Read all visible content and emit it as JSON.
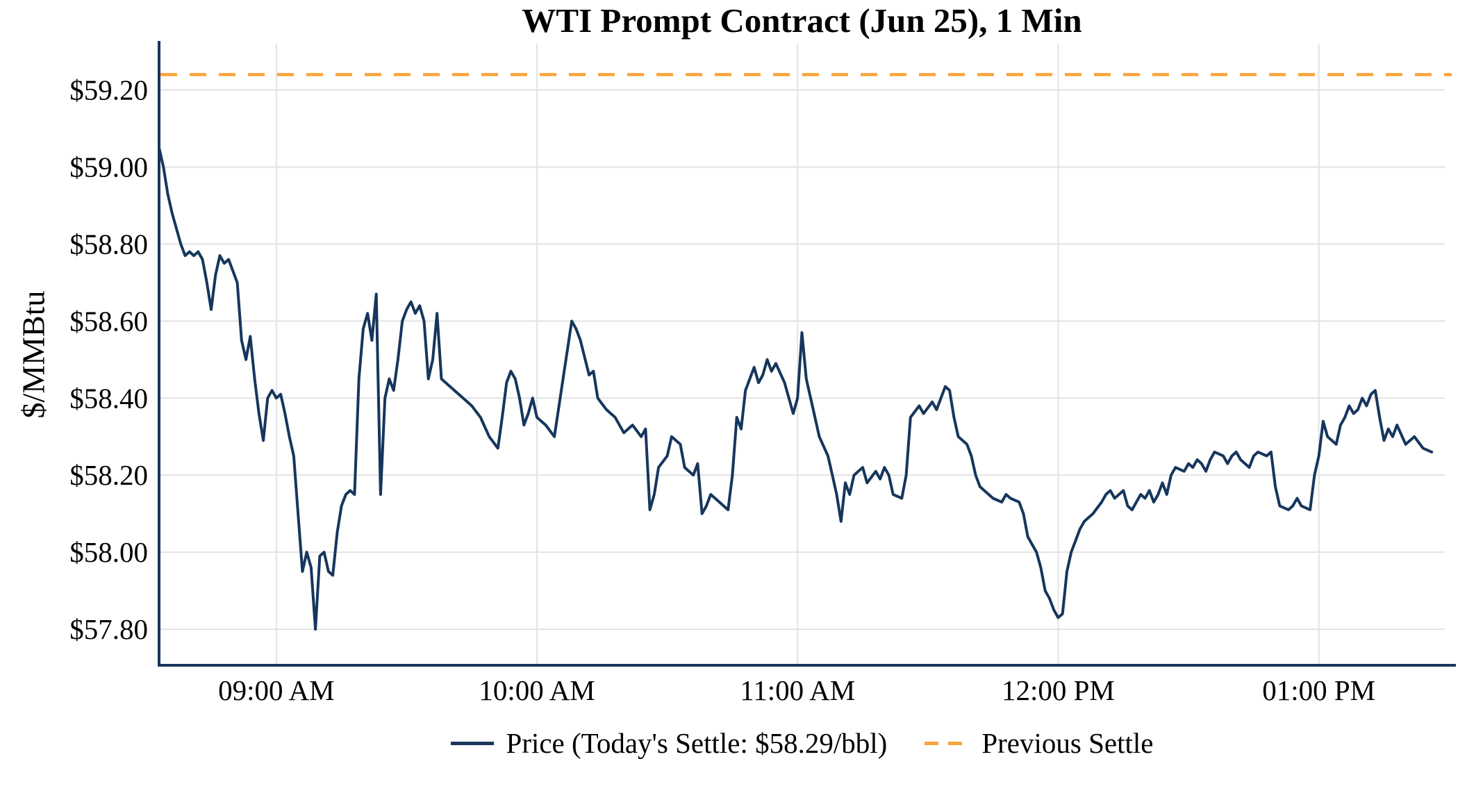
{
  "chart_data": {
    "type": "line",
    "title": "WTI Prompt Contract (Jun 25), 1 Min",
    "xlabel": "",
    "ylabel": "$/MMBtu",
    "grid": true,
    "legend_position": "bottom",
    "x_domain": [
      "08:33",
      "13:29"
    ],
    "y_domain": [
      57.71,
      59.32
    ],
    "x_ticks": [
      {
        "time": "09:00",
        "label": "09:00 AM"
      },
      {
        "time": "10:00",
        "label": "10:00 AM"
      },
      {
        "time": "11:00",
        "label": "11:00 AM"
      },
      {
        "time": "12:00",
        "label": "12:00 PM"
      },
      {
        "time": "13:00",
        "label": "01:00 PM"
      }
    ],
    "y_ticks": [
      {
        "value": 57.8,
        "label": "$57.80"
      },
      {
        "value": 58.0,
        "label": "$58.00"
      },
      {
        "value": 58.2,
        "label": "$58.20"
      },
      {
        "value": 58.4,
        "label": "$58.40"
      },
      {
        "value": 58.6,
        "label": "$58.60"
      },
      {
        "value": 58.8,
        "label": "$58.80"
      },
      {
        "value": 59.0,
        "label": "$59.00"
      },
      {
        "value": 59.2,
        "label": "$59.20"
      }
    ],
    "previous_settle": 59.24,
    "todays_settle_text": "$58.29/bbl",
    "legend": {
      "price_label": "Price (Today's Settle: $58.29/bbl)",
      "previous_settle_label": "Previous Settle"
    },
    "colors": {
      "price": "#16365c",
      "previous_settle": "#FAA43A",
      "grid": "#e2e2e2",
      "axis": "#16365c",
      "text": "#000000"
    },
    "series": {
      "name": "Price",
      "points": [
        [
          "08:33",
          59.05
        ],
        [
          "08:34",
          59.0
        ],
        [
          "08:35",
          58.93
        ],
        [
          "08:36",
          58.88
        ],
        [
          "08:37",
          58.84
        ],
        [
          "08:38",
          58.8
        ],
        [
          "08:39",
          58.77
        ],
        [
          "08:40",
          58.78
        ],
        [
          "08:41",
          58.77
        ],
        [
          "08:42",
          58.78
        ],
        [
          "08:43",
          58.76
        ],
        [
          "08:44",
          58.7
        ],
        [
          "08:45",
          58.63
        ],
        [
          "08:46",
          58.72
        ],
        [
          "08:47",
          58.77
        ],
        [
          "08:48",
          58.75
        ],
        [
          "08:49",
          58.76
        ],
        [
          "08:50",
          58.73
        ],
        [
          "08:51",
          58.7
        ],
        [
          "08:52",
          58.55
        ],
        [
          "08:53",
          58.5
        ],
        [
          "08:54",
          58.56
        ],
        [
          "08:55",
          58.45
        ],
        [
          "08:56",
          58.36
        ],
        [
          "08:57",
          58.29
        ],
        [
          "08:58",
          58.4
        ],
        [
          "08:59",
          58.42
        ],
        [
          "09:00",
          58.4
        ],
        [
          "09:01",
          58.41
        ],
        [
          "09:02",
          58.36
        ],
        [
          "09:03",
          58.3
        ],
        [
          "09:04",
          58.25
        ],
        [
          "09:05",
          58.1
        ],
        [
          "09:06",
          57.95
        ],
        [
          "09:07",
          58.0
        ],
        [
          "09:08",
          57.96
        ],
        [
          "09:09",
          57.8
        ],
        [
          "09:10",
          57.99
        ],
        [
          "09:11",
          58.0
        ],
        [
          "09:12",
          57.95
        ],
        [
          "09:13",
          57.94
        ],
        [
          "09:14",
          58.05
        ],
        [
          "09:15",
          58.12
        ],
        [
          "09:16",
          58.15
        ],
        [
          "09:17",
          58.16
        ],
        [
          "09:18",
          58.15
        ],
        [
          "09:19",
          58.45
        ],
        [
          "09:20",
          58.58
        ],
        [
          "09:21",
          58.62
        ],
        [
          "09:22",
          58.55
        ],
        [
          "09:23",
          58.67
        ],
        [
          "09:24",
          58.15
        ],
        [
          "09:25",
          58.4
        ],
        [
          "09:26",
          58.45
        ],
        [
          "09:27",
          58.42
        ],
        [
          "09:28",
          58.5
        ],
        [
          "09:29",
          58.6
        ],
        [
          "09:30",
          58.63
        ],
        [
          "09:31",
          58.65
        ],
        [
          "09:32",
          58.62
        ],
        [
          "09:33",
          58.64
        ],
        [
          "09:34",
          58.6
        ],
        [
          "09:35",
          58.45
        ],
        [
          "09:36",
          58.5
        ],
        [
          "09:37",
          58.62
        ],
        [
          "09:38",
          58.45
        ],
        [
          "09:39",
          58.44
        ],
        [
          "09:41",
          58.42
        ],
        [
          "09:43",
          58.4
        ],
        [
          "09:45",
          58.38
        ],
        [
          "09:47",
          58.35
        ],
        [
          "09:49",
          58.3
        ],
        [
          "09:51",
          58.27
        ],
        [
          "09:52",
          58.35
        ],
        [
          "09:53",
          58.44
        ],
        [
          "09:54",
          58.47
        ],
        [
          "09:55",
          58.45
        ],
        [
          "09:56",
          58.4
        ],
        [
          "09:57",
          58.33
        ],
        [
          "09:58",
          58.36
        ],
        [
          "09:59",
          58.4
        ],
        [
          "10:00",
          58.35
        ],
        [
          "10:02",
          58.33
        ],
        [
          "10:04",
          58.3
        ],
        [
          "10:06",
          58.45
        ],
        [
          "10:08",
          58.6
        ],
        [
          "10:09",
          58.58
        ],
        [
          "10:10",
          58.55
        ],
        [
          "10:12",
          58.46
        ],
        [
          "10:13",
          58.47
        ],
        [
          "10:14",
          58.4
        ],
        [
          "10:16",
          58.37
        ],
        [
          "10:18",
          58.35
        ],
        [
          "10:20",
          58.31
        ],
        [
          "10:22",
          58.33
        ],
        [
          "10:24",
          58.3
        ],
        [
          "10:25",
          58.32
        ],
        [
          "10:26",
          58.11
        ],
        [
          "10:27",
          58.15
        ],
        [
          "10:28",
          58.22
        ],
        [
          "10:30",
          58.25
        ],
        [
          "10:31",
          58.3
        ],
        [
          "10:33",
          58.28
        ],
        [
          "10:34",
          58.22
        ],
        [
          "10:36",
          58.2
        ],
        [
          "10:37",
          58.23
        ],
        [
          "10:38",
          58.1
        ],
        [
          "10:39",
          58.12
        ],
        [
          "10:40",
          58.15
        ],
        [
          "10:42",
          58.13
        ],
        [
          "10:43",
          58.12
        ],
        [
          "10:44",
          58.11
        ],
        [
          "10:45",
          58.2
        ],
        [
          "10:46",
          58.35
        ],
        [
          "10:47",
          58.32
        ],
        [
          "10:48",
          58.42
        ],
        [
          "10:50",
          58.48
        ],
        [
          "10:51",
          58.44
        ],
        [
          "10:52",
          58.46
        ],
        [
          "10:53",
          58.5
        ],
        [
          "10:54",
          58.47
        ],
        [
          "10:55",
          58.49
        ],
        [
          "10:57",
          58.44
        ],
        [
          "10:59",
          58.36
        ],
        [
          "11:00",
          58.4
        ],
        [
          "11:01",
          58.57
        ],
        [
          "11:02",
          58.45
        ],
        [
          "11:04",
          58.35
        ],
        [
          "11:05",
          58.3
        ],
        [
          "11:07",
          58.25
        ],
        [
          "11:08",
          58.2
        ],
        [
          "11:09",
          58.15
        ],
        [
          "11:10",
          58.08
        ],
        [
          "11:11",
          58.18
        ],
        [
          "11:12",
          58.15
        ],
        [
          "11:13",
          58.2
        ],
        [
          "11:15",
          58.22
        ],
        [
          "11:16",
          58.18
        ],
        [
          "11:18",
          58.21
        ],
        [
          "11:19",
          58.19
        ],
        [
          "11:20",
          58.22
        ],
        [
          "11:21",
          58.2
        ],
        [
          "11:22",
          58.15
        ],
        [
          "11:24",
          58.14
        ],
        [
          "11:25",
          58.2
        ],
        [
          "11:26",
          58.35
        ],
        [
          "11:28",
          58.38
        ],
        [
          "11:29",
          58.36
        ],
        [
          "11:31",
          58.39
        ],
        [
          "11:32",
          58.37
        ],
        [
          "11:33",
          58.4
        ],
        [
          "11:34",
          58.43
        ],
        [
          "11:35",
          58.42
        ],
        [
          "11:36",
          58.35
        ],
        [
          "11:37",
          58.3
        ],
        [
          "11:39",
          58.28
        ],
        [
          "11:40",
          58.25
        ],
        [
          "11:41",
          58.2
        ],
        [
          "11:42",
          58.17
        ],
        [
          "11:44",
          58.15
        ],
        [
          "11:45",
          58.14
        ],
        [
          "11:47",
          58.13
        ],
        [
          "11:48",
          58.15
        ],
        [
          "11:49",
          58.14
        ],
        [
          "11:51",
          58.13
        ],
        [
          "11:52",
          58.1
        ],
        [
          "11:53",
          58.04
        ],
        [
          "11:55",
          58.0
        ],
        [
          "11:56",
          57.96
        ],
        [
          "11:57",
          57.9
        ],
        [
          "11:58",
          57.88
        ],
        [
          "11:59",
          57.85
        ],
        [
          "12:00",
          57.83
        ],
        [
          "12:01",
          57.84
        ],
        [
          "12:02",
          57.95
        ],
        [
          "12:03",
          58.0
        ],
        [
          "12:04",
          58.03
        ],
        [
          "12:05",
          58.06
        ],
        [
          "12:06",
          58.08
        ],
        [
          "12:08",
          58.1
        ],
        [
          "12:10",
          58.13
        ],
        [
          "12:11",
          58.15
        ],
        [
          "12:12",
          58.16
        ],
        [
          "12:13",
          58.14
        ],
        [
          "12:14",
          58.15
        ],
        [
          "12:15",
          58.16
        ],
        [
          "12:16",
          58.12
        ],
        [
          "12:17",
          58.11
        ],
        [
          "12:18",
          58.13
        ],
        [
          "12:19",
          58.15
        ],
        [
          "12:20",
          58.14
        ],
        [
          "12:21",
          58.16
        ],
        [
          "12:22",
          58.13
        ],
        [
          "12:23",
          58.15
        ],
        [
          "12:24",
          58.18
        ],
        [
          "12:25",
          58.15
        ],
        [
          "12:26",
          58.2
        ],
        [
          "12:27",
          58.22
        ],
        [
          "12:29",
          58.21
        ],
        [
          "12:30",
          58.23
        ],
        [
          "12:31",
          58.22
        ],
        [
          "12:32",
          58.24
        ],
        [
          "12:33",
          58.23
        ],
        [
          "12:34",
          58.21
        ],
        [
          "12:35",
          58.24
        ],
        [
          "12:36",
          58.26
        ],
        [
          "12:38",
          58.25
        ],
        [
          "12:39",
          58.23
        ],
        [
          "12:40",
          58.25
        ],
        [
          "12:41",
          58.26
        ],
        [
          "12:42",
          58.24
        ],
        [
          "12:44",
          58.22
        ],
        [
          "12:45",
          58.25
        ],
        [
          "12:46",
          58.26
        ],
        [
          "12:48",
          58.25
        ],
        [
          "12:49",
          58.26
        ],
        [
          "12:50",
          58.17
        ],
        [
          "12:51",
          58.12
        ],
        [
          "12:53",
          58.11
        ],
        [
          "12:54",
          58.12
        ],
        [
          "12:55",
          58.14
        ],
        [
          "12:56",
          58.12
        ],
        [
          "12:58",
          58.11
        ],
        [
          "12:59",
          58.2
        ],
        [
          "13:00",
          58.25
        ],
        [
          "13:01",
          58.34
        ],
        [
          "13:02",
          58.3
        ],
        [
          "13:04",
          58.28
        ],
        [
          "13:05",
          58.33
        ],
        [
          "13:06",
          58.35
        ],
        [
          "13:07",
          58.38
        ],
        [
          "13:08",
          58.36
        ],
        [
          "13:09",
          58.37
        ],
        [
          "13:10",
          58.4
        ],
        [
          "13:11",
          58.38
        ],
        [
          "13:12",
          58.41
        ],
        [
          "13:13",
          58.42
        ],
        [
          "13:14",
          58.35
        ],
        [
          "13:15",
          58.29
        ],
        [
          "13:16",
          58.32
        ],
        [
          "13:17",
          58.3
        ],
        [
          "13:18",
          58.33
        ],
        [
          "13:20",
          58.28
        ],
        [
          "13:22",
          58.3
        ],
        [
          "13:24",
          58.27
        ],
        [
          "13:26",
          58.26
        ]
      ]
    }
  }
}
